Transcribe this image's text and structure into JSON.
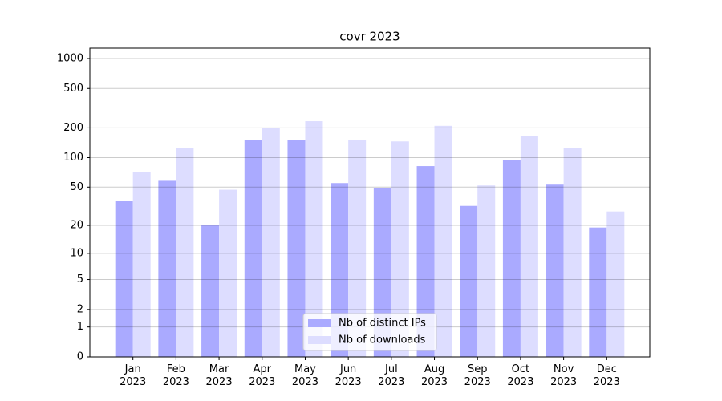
{
  "chart_data": {
    "type": "bar",
    "title": "covr 2023",
    "categories": [
      "Jan\n2023",
      "Feb\n2023",
      "Mar\n2023",
      "Apr\n2023",
      "May\n2023",
      "Jun\n2023",
      "Jul\n2023",
      "Aug\n2023",
      "Sep\n2023",
      "Oct\n2023",
      "Nov\n2023",
      "Dec\n2023"
    ],
    "series": [
      {
        "name": "Nb of distinct IPs",
        "color": "#aaaaff",
        "values": [
          36,
          58,
          20,
          150,
          152,
          55,
          49,
          82,
          32,
          95,
          53,
          19
        ]
      },
      {
        "name": "Nb of downloads",
        "color": "#ddddff",
        "values": [
          71,
          124,
          47,
          200,
          234,
          150,
          146,
          210,
          52,
          167,
          124,
          28
        ]
      }
    ],
    "yscale": "log1p",
    "ylim": [
      0,
      1273
    ],
    "yticks": [
      0,
      1,
      2,
      5,
      10,
      20,
      50,
      100,
      200,
      500,
      1000
    ],
    "grid": true,
    "legend": "lower center"
  }
}
